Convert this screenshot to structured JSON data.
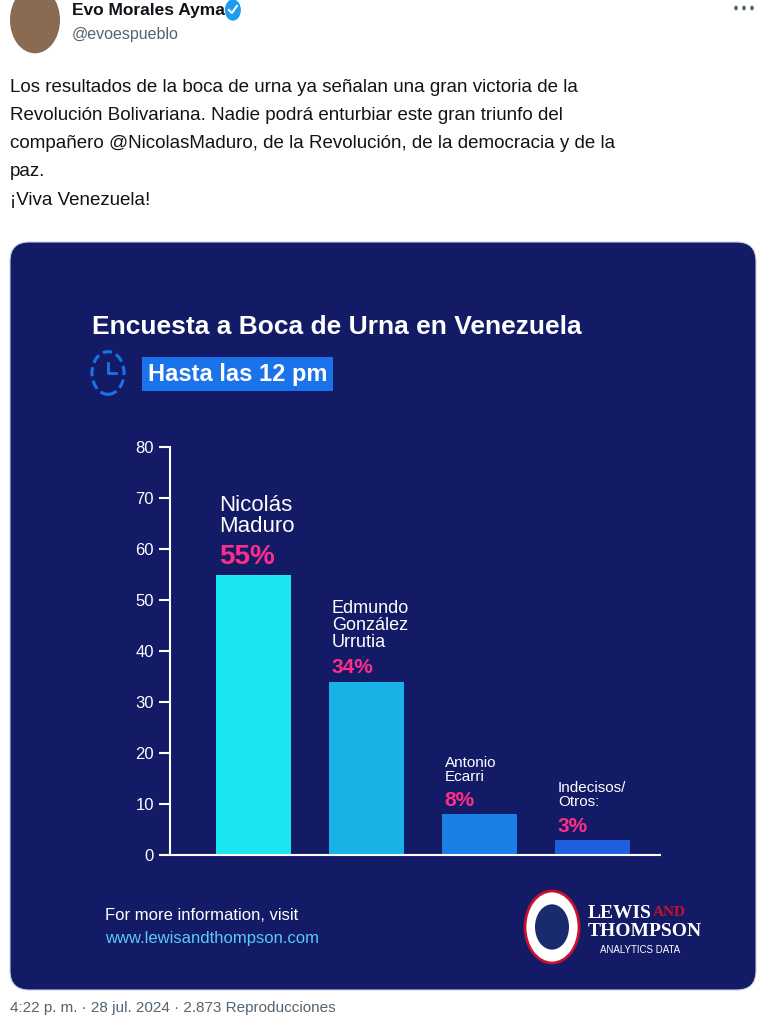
{
  "post": {
    "author": "Evo Morales Ayma",
    "handle": "@evoespueblo",
    "text_lines": [
      "Los resultados de la boca de urna ya señalan una gran victoria de la",
      "Revolución Bolivariana. Nadie podrá enturbiar este gran triunfo del",
      "compañero @NicolasMaduro, de la Revolución, de la democracia y de la",
      "paz.",
      "¡Viva Venezuela!"
    ],
    "footer": "4:22 p. m. · 28 jul. 2024 · 2.873 Reproducciones"
  },
  "chart_data": {
    "type": "bar",
    "title": "Encuesta a Boca de Urna en Venezuela",
    "subtitle": "Hasta las 12 pm",
    "categories": [
      "Nicolás\nMaduro",
      "Edmundo\nGonzález\nUrrutia",
      "Antonio\nEcarri",
      "Indecisos/\nOtros:"
    ],
    "values": [
      55,
      34,
      8,
      3
    ],
    "value_labels": [
      "55%",
      "34%",
      "8%",
      "3%"
    ],
    "colors": [
      "#19e6f0",
      "#18b2e6",
      "#1a80e6",
      "#1d5fdc"
    ],
    "ylim": [
      0,
      80
    ],
    "yticks": [
      0,
      10,
      20,
      30,
      40,
      50,
      60,
      70,
      80
    ],
    "grid": false,
    "data_labels": true,
    "tick_labels": "y",
    "annotations": [
      "For more information, visit",
      "www.lewisandthompson.com"
    ],
    "logo": [
      "LEWIS",
      "AND",
      "THOMPSON",
      "ANALYTICS DATA"
    ]
  }
}
